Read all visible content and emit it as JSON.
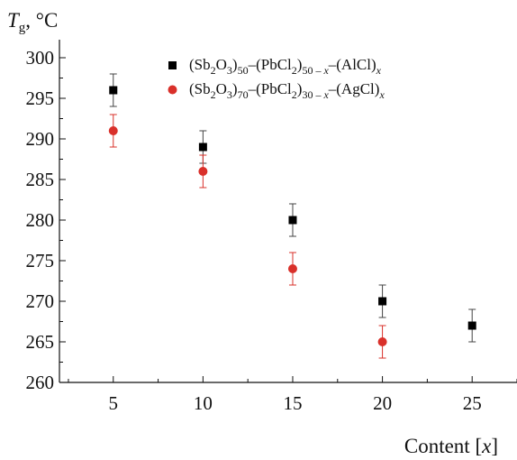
{
  "chart_data": {
    "type": "scatter",
    "title": "",
    "ylabel": {
      "symbol": "T",
      "subscript": "g",
      "unit": ", °C"
    },
    "xlabel": {
      "text": "Content [",
      "var": "x",
      "end": "]"
    },
    "xlim": [
      2,
      27.5
    ],
    "ylim": [
      260,
      302
    ],
    "xticks": [
      5,
      10,
      15,
      20,
      25
    ],
    "yticks": [
      260,
      265,
      270,
      275,
      280,
      285,
      290,
      295,
      300
    ],
    "grid": false,
    "legend_position": "top-right",
    "series": [
      {
        "marker": "square",
        "color": "#000000",
        "legend_parts": [
          {
            "t": "(Sb",
            "s": "n"
          },
          {
            "t": "2",
            "s": "sub"
          },
          {
            "t": "O",
            "s": "n"
          },
          {
            "t": "3",
            "s": "sub"
          },
          {
            "t": ")",
            "s": "n"
          },
          {
            "t": "50",
            "s": "sub"
          },
          {
            "t": "–(PbCl",
            "s": "n"
          },
          {
            "t": "2",
            "s": "sub"
          },
          {
            "t": ")",
            "s": "n"
          },
          {
            "t": "50 – x",
            "s": "sub"
          },
          {
            "t": "–(AlCl)",
            "s": "n"
          },
          {
            "t": "x",
            "s": "sub"
          }
        ],
        "points": [
          {
            "x": 5,
            "y": 296,
            "err": 2
          },
          {
            "x": 10,
            "y": 289,
            "err": 2
          },
          {
            "x": 15,
            "y": 280,
            "err": 2
          },
          {
            "x": 20,
            "y": 270,
            "err": 2
          },
          {
            "x": 25,
            "y": 267,
            "err": 2
          }
        ]
      },
      {
        "marker": "circle",
        "color": "#d9302a",
        "legend_parts": [
          {
            "t": "(Sb",
            "s": "n"
          },
          {
            "t": "2",
            "s": "sub"
          },
          {
            "t": "O",
            "s": "n"
          },
          {
            "t": "3",
            "s": "sub"
          },
          {
            "t": ")",
            "s": "n"
          },
          {
            "t": "70",
            "s": "sub"
          },
          {
            "t": "–(PbCl",
            "s": "n"
          },
          {
            "t": "2",
            "s": "sub"
          },
          {
            "t": ")",
            "s": "n"
          },
          {
            "t": "30 – x",
            "s": "sub"
          },
          {
            "t": "–(AgCl)",
            "s": "n"
          },
          {
            "t": "x",
            "s": "sub"
          }
        ],
        "points": [
          {
            "x": 5,
            "y": 291,
            "err": 2
          },
          {
            "x": 10,
            "y": 286,
            "err": 2
          },
          {
            "x": 15,
            "y": 274,
            "err": 2
          },
          {
            "x": 20,
            "y": 265,
            "err": 2
          }
        ]
      }
    ]
  }
}
